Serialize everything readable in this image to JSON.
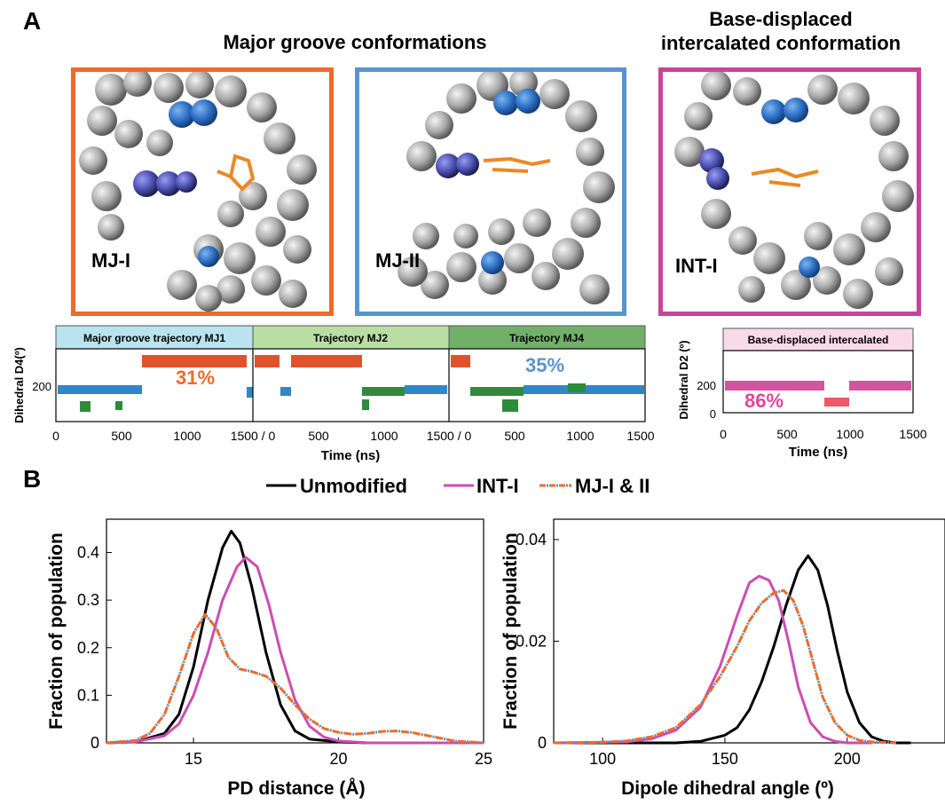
{
  "panel_a": {
    "letter": "A",
    "heading_major": "Major groove conformations",
    "heading_int_line1": "Base-displaced",
    "heading_int_line2": "intercalated conformation",
    "structures": [
      {
        "label": "MJ-I",
        "border_color": "#ee6b2a"
      },
      {
        "label": "MJ-II",
        "border_color": "#5b93cf"
      },
      {
        "label": "INT-I",
        "border_color": "#c8449a"
      }
    ],
    "trajectory_plot": {
      "segment_titles": [
        "Major groove trajectory MJ1",
        "Trajectory MJ2",
        "Trajectory MJ4"
      ],
      "segment_colors": [
        "#b9e3ee",
        "#b8dea4",
        "#72b06a"
      ],
      "ylabel": "Dihedral D4(º)",
      "xlabel": "Time (ns)",
      "ytick": "200",
      "xticks": [
        "0",
        "500",
        "1000",
        "1500 / 0",
        "500",
        "1000",
        "1500 / 0",
        "500",
        "1000",
        "1500"
      ],
      "percent_31": "31%",
      "percent_35": "35%",
      "color_31": "#ee6b2a",
      "color_35": "#5b93cf"
    },
    "intercalated_plot": {
      "title": "Base-displaced intercalated",
      "title_color": "#f8dbe6",
      "ylabel": "Dihedral D2 (º)",
      "xlabel": "Time (ns)",
      "yticks": [
        "0",
        "200"
      ],
      "xticks": [
        "0",
        "500",
        "1000",
        "1500"
      ],
      "percent": "86%",
      "color": "#e0479a"
    }
  },
  "panel_b": {
    "letter": "B",
    "legend": [
      {
        "label": "Unmodified",
        "color": "#000000",
        "style": "solid"
      },
      {
        "label": "INT-I",
        "color": "#cc4eb2",
        "style": "solid"
      },
      {
        "label": "MJ-I & II",
        "color": "#ee6b2a",
        "style": "dash-dot",
        "dash_color": "#3a9ad9"
      }
    ]
  },
  "chart_data": [
    {
      "type": "line",
      "xlabel": "PD distance (Å)",
      "ylabel": "Fraction of population",
      "xlim": [
        12,
        25
      ],
      "ylim": [
        0,
        0.47
      ],
      "xticks": [
        "15",
        "20",
        "25"
      ],
      "yticks": [
        "0",
        "0.1",
        "0.2",
        "0.3",
        "0.4"
      ],
      "series": [
        {
          "name": "Unmodified",
          "color": "#000000",
          "x": [
            12,
            13,
            14,
            14.5,
            15,
            15.5,
            16,
            16.3,
            16.6,
            17,
            17.5,
            18,
            18.5,
            19,
            20,
            21,
            22,
            25
          ],
          "y": [
            0,
            0.002,
            0.02,
            0.06,
            0.16,
            0.3,
            0.41,
            0.445,
            0.42,
            0.33,
            0.19,
            0.08,
            0.025,
            0.008,
            0.002,
            0,
            0,
            0
          ]
        },
        {
          "name": "INT-I",
          "color": "#cc4eb2",
          "x": [
            12,
            13,
            14,
            14.5,
            15,
            15.5,
            16,
            16.5,
            16.8,
            17.2,
            17.6,
            18,
            18.5,
            19,
            19.5,
            20,
            21,
            25
          ],
          "y": [
            0,
            0.002,
            0.015,
            0.04,
            0.1,
            0.19,
            0.3,
            0.37,
            0.39,
            0.37,
            0.29,
            0.19,
            0.09,
            0.035,
            0.012,
            0.004,
            0,
            0
          ]
        },
        {
          "name": "MJ-I & II",
          "color": "#ee6b2a",
          "x": [
            12,
            13,
            13.5,
            14,
            14.5,
            15,
            15.4,
            15.8,
            16.2,
            16.6,
            17,
            17.5,
            18,
            18.5,
            19,
            19.5,
            20,
            20.5,
            21,
            21.5,
            22,
            22.5,
            23,
            23.5,
            24,
            25
          ],
          "y": [
            0,
            0.005,
            0.02,
            0.06,
            0.14,
            0.23,
            0.27,
            0.24,
            0.18,
            0.155,
            0.15,
            0.14,
            0.115,
            0.08,
            0.05,
            0.03,
            0.022,
            0.018,
            0.02,
            0.024,
            0.025,
            0.022,
            0.016,
            0.01,
            0.004,
            0
          ]
        }
      ]
    },
    {
      "type": "line",
      "xlabel": "Dipole dihedral angle (º)",
      "ylabel": "Fraction of population",
      "xlim": [
        80,
        240
      ],
      "ylim": [
        0,
        0.044
      ],
      "xticks": [
        "100",
        "150",
        "200"
      ],
      "yticks": [
        "0",
        "0.02",
        "0.04"
      ],
      "series": [
        {
          "name": "Unmodified",
          "color": "#000000",
          "x": [
            80,
            130,
            140,
            150,
            155,
            160,
            165,
            170,
            175,
            180,
            184,
            188,
            192,
            196,
            200,
            205,
            210,
            215,
            220,
            226
          ],
          "y": [
            0,
            0,
            0.0003,
            0.0015,
            0.003,
            0.0065,
            0.012,
            0.019,
            0.027,
            0.034,
            0.0368,
            0.034,
            0.027,
            0.018,
            0.01,
            0.004,
            0.0012,
            0.0003,
            0,
            0
          ]
        },
        {
          "name": "INT-I",
          "color": "#cc4eb2",
          "x": [
            80,
            110,
            120,
            130,
            140,
            148,
            155,
            160,
            164,
            168,
            172,
            176,
            180,
            185,
            190,
            195,
            200,
            210
          ],
          "y": [
            0,
            0.0002,
            0.0008,
            0.0025,
            0.007,
            0.015,
            0.025,
            0.0315,
            0.0328,
            0.032,
            0.028,
            0.02,
            0.011,
            0.004,
            0.0012,
            0.0003,
            0,
            0
          ]
        },
        {
          "name": "MJ-I & II",
          "color": "#ee6b2a",
          "x": [
            80,
            100,
            110,
            120,
            130,
            140,
            148,
            155,
            160,
            165,
            170,
            174,
            178,
            182,
            186,
            190,
            195,
            200,
            205,
            210,
            215,
            220
          ],
          "y": [
            0,
            0.0001,
            0.0004,
            0.0012,
            0.003,
            0.0075,
            0.013,
            0.019,
            0.024,
            0.0275,
            0.0295,
            0.03,
            0.028,
            0.023,
            0.016,
            0.009,
            0.004,
            0.0015,
            0.0005,
            0.0002,
            0.0001,
            0
          ]
        }
      ]
    }
  ]
}
